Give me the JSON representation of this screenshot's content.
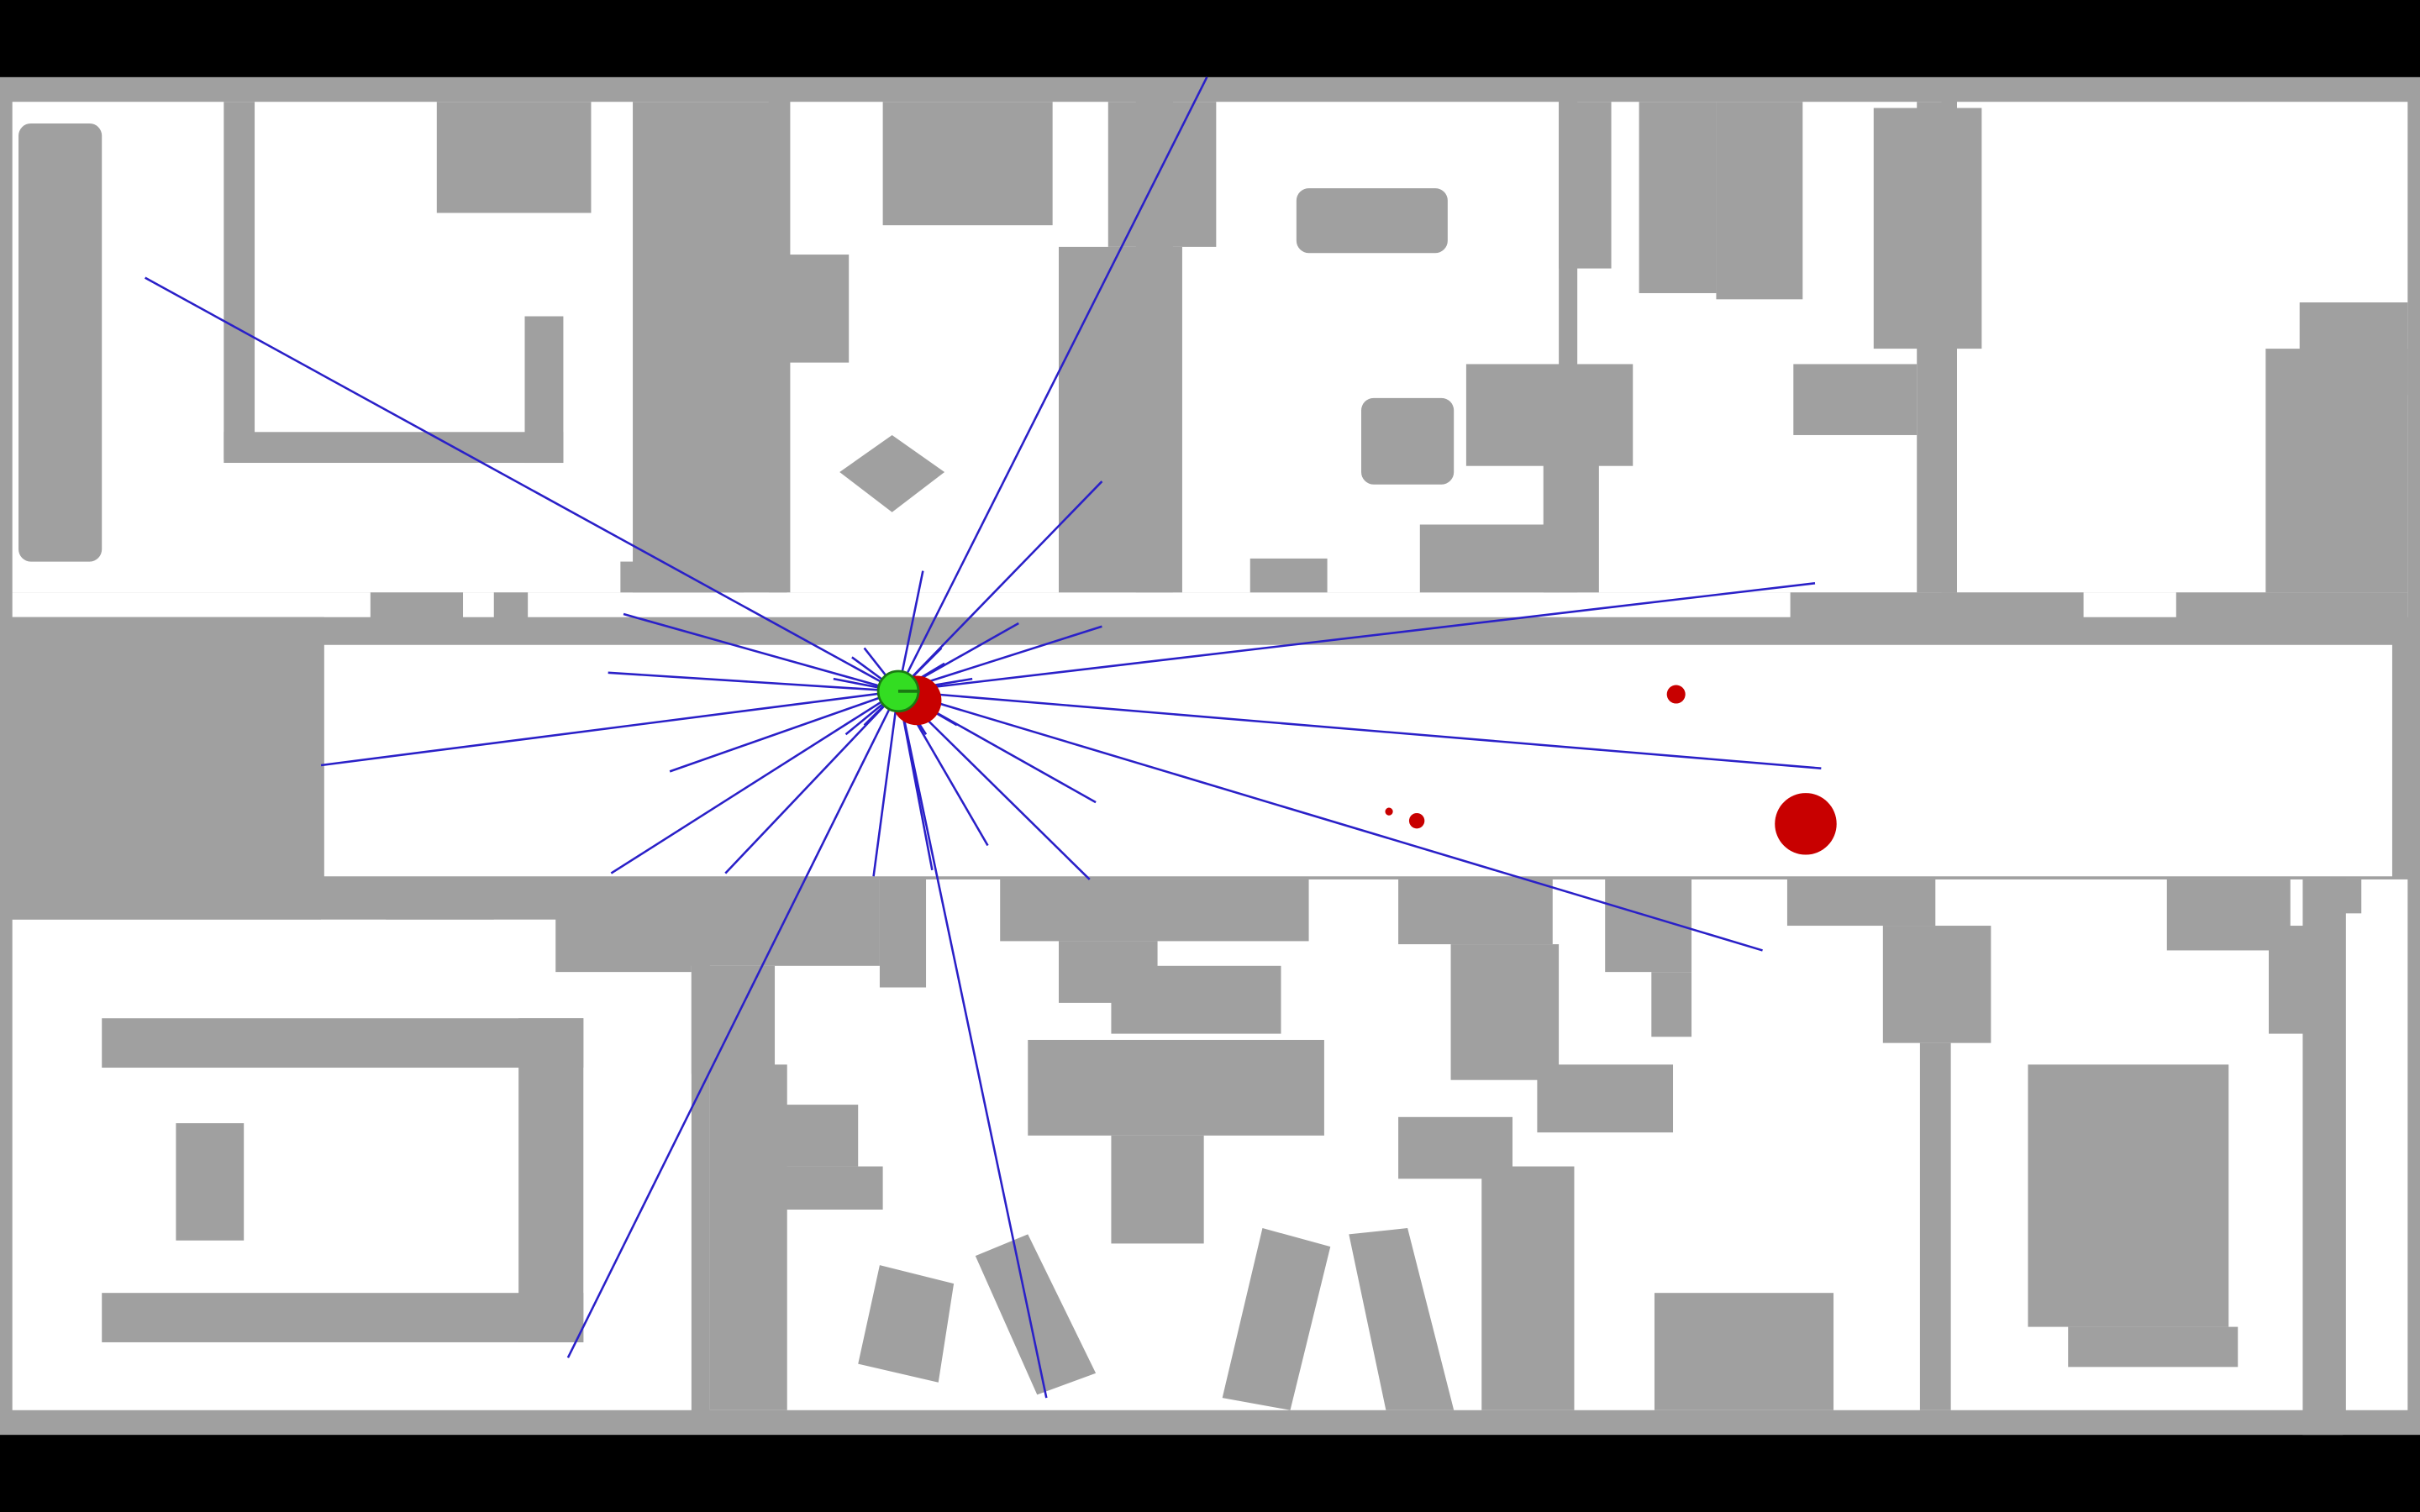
{
  "colors": {
    "letterbox": "#000000",
    "obstacle": "#a0a0a0",
    "free_space": "#ffffff",
    "laser_ray": "#2a20c8",
    "particle": "#c80000",
    "robot": "#33dd22",
    "robot_heading": "#1a7a12"
  },
  "map": {
    "type": "occupancy-grid",
    "robot": {
      "label": "robot",
      "heading": "east"
    },
    "laser_scan": {
      "ray_count": 32
    },
    "particle_clusters": 4
  }
}
